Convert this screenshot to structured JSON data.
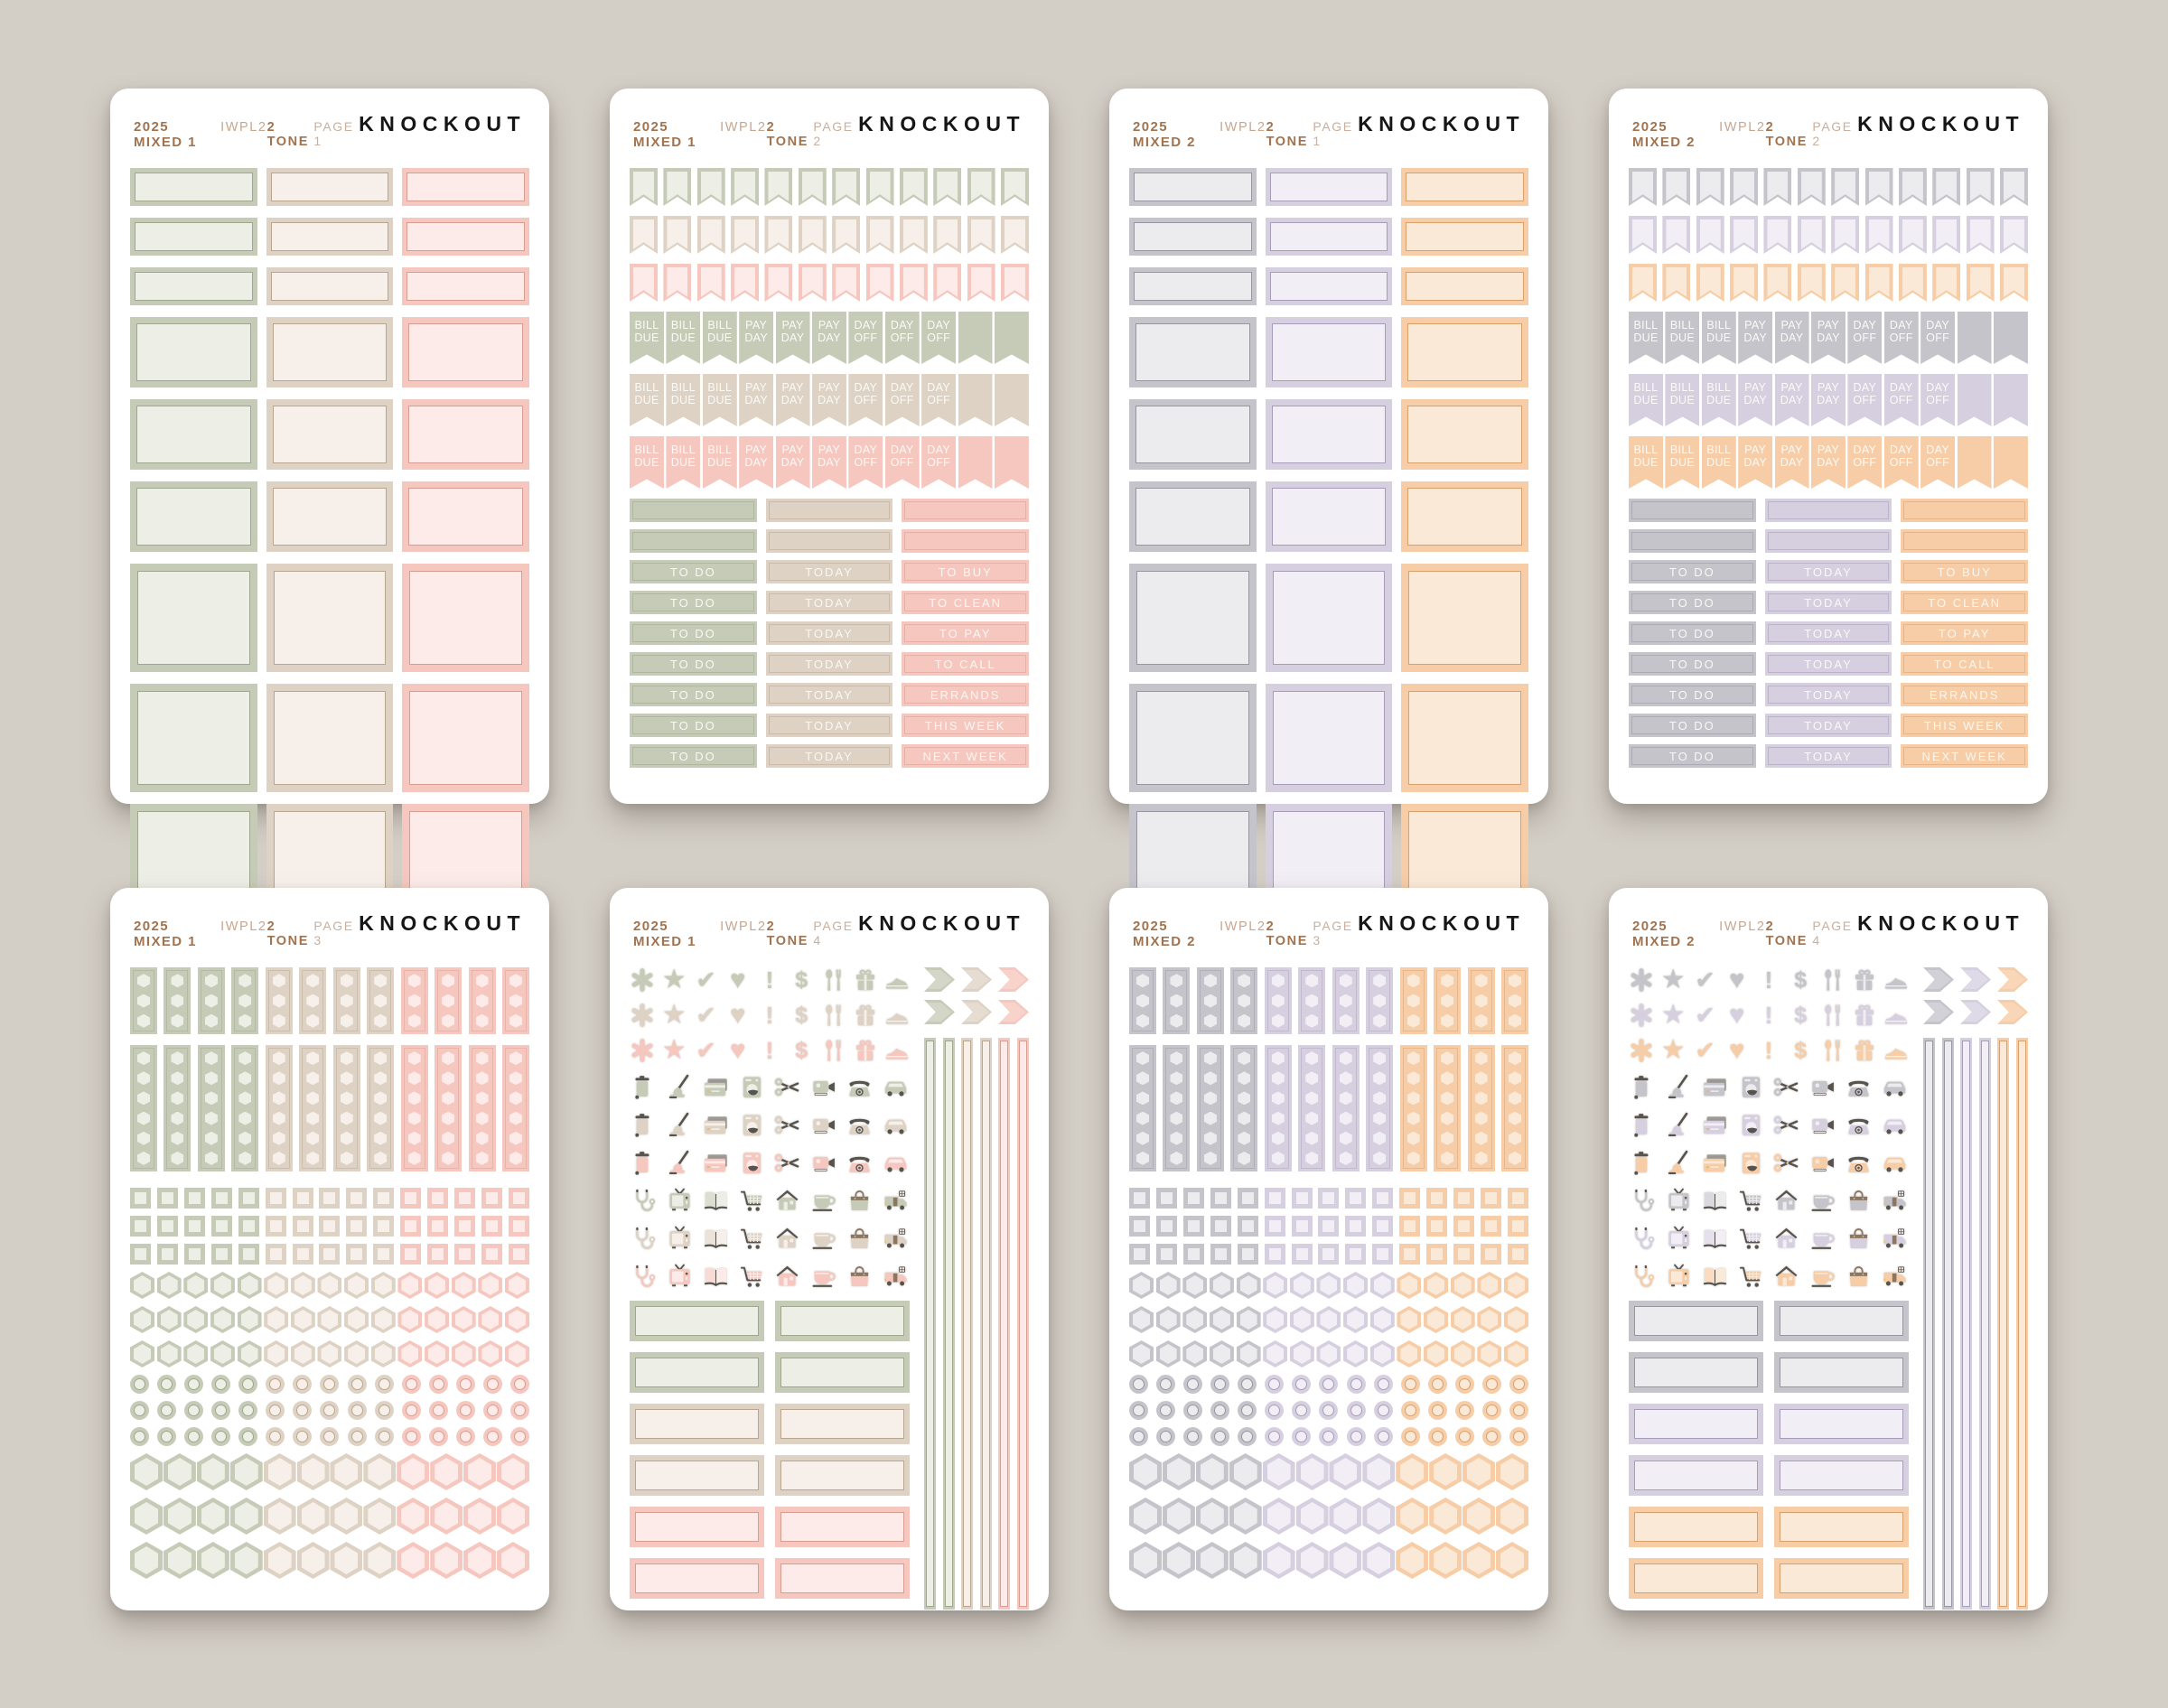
{
  "page": {
    "background": "#d3cec6"
  },
  "palettes": {
    "mixed1": [
      {
        "name": "sage",
        "solid": "#c6cbb7",
        "light": "#edefe7",
        "line": "#9fa78d"
      },
      {
        "name": "beige",
        "solid": "#ddd2c3",
        "light": "#f7f0ea",
        "line": "#b9a68f"
      },
      {
        "name": "pink",
        "solid": "#f5c7be",
        "light": "#fcebe8",
        "line": "#d89d92"
      }
    ],
    "mixed2": [
      {
        "name": "gray",
        "solid": "#c5c4cb",
        "light": "#ececef",
        "line": "#9897a1"
      },
      {
        "name": "lavender",
        "solid": "#d6cfdf",
        "light": "#f1eef5",
        "line": "#a89db8"
      },
      {
        "name": "peach",
        "solid": "#f6cda6",
        "light": "#fbe9d8",
        "line": "#d8a06b"
      }
    ]
  },
  "labels": {
    "flags": [
      "BILL DUE",
      "PAY DAY",
      "DAY OFF"
    ],
    "strips": [
      [
        "TO DO",
        "TODAY",
        "TO BUY"
      ],
      [
        "TO DO",
        "TODAY",
        "TO CLEAN"
      ],
      [
        "TO DO",
        "TODAY",
        "TO PAY"
      ],
      [
        "TO DO",
        "TODAY",
        "TO CALL"
      ],
      [
        "TO DO",
        "TODAY",
        "ERRANDS"
      ],
      [
        "TO DO",
        "TODAY",
        "THIS WEEK"
      ],
      [
        "TO DO",
        "TODAY",
        "NEXT WEEK"
      ]
    ]
  },
  "icons": {
    "symbols": [
      "asterisk",
      "star",
      "check",
      "heart",
      "exclamation",
      "dollar",
      "utensils",
      "gift",
      "sneaker"
    ],
    "objects_a": [
      "trash-bin",
      "vacuum",
      "credit-cards",
      "washing-machine",
      "scissors",
      "video-camera",
      "telephone",
      "car"
    ],
    "objects_b": [
      "stethoscope",
      "tv",
      "book",
      "shopping-cart",
      "house",
      "coffee-cup",
      "shopping-bag",
      "delivery-truck"
    ]
  },
  "icon_glyphs": {
    "star": "★",
    "check": "✔",
    "heart": "♥",
    "exclamation": "!",
    "dollar": "$"
  },
  "sheets": [
    {
      "collection": "2025 MIXED 1",
      "sku": "IWPL2",
      "tone": "2 TONE",
      "page": "PAGE 1",
      "brand": "KNOCKOUT",
      "layout": "boxes",
      "palette": "mixed1"
    },
    {
      "collection": "2025 MIXED 1",
      "sku": "IWPL2",
      "tone": "2 TONE",
      "page": "PAGE 2",
      "brand": "KNOCKOUT",
      "layout": "flags",
      "palette": "mixed1"
    },
    {
      "collection": "2025 MIXED 2",
      "sku": "IWPL2",
      "tone": "2 TONE",
      "page": "PAGE 1",
      "brand": "KNOCKOUT",
      "layout": "boxes",
      "palette": "mixed2"
    },
    {
      "collection": "2025 MIXED 2",
      "sku": "IWPL2",
      "tone": "2 TONE",
      "page": "PAGE 2",
      "brand": "KNOCKOUT",
      "layout": "flags",
      "palette": "mixed2"
    },
    {
      "collection": "2025 MIXED 1",
      "sku": "IWPL2",
      "tone": "2 TONE",
      "page": "PAGE 3",
      "brand": "KNOCKOUT",
      "layout": "shapes",
      "palette": "mixed1"
    },
    {
      "collection": "2025 MIXED 1",
      "sku": "IWPL2",
      "tone": "2 TONE",
      "page": "PAGE 4",
      "brand": "KNOCKOUT",
      "layout": "icons",
      "palette": "mixed1"
    },
    {
      "collection": "2025 MIXED 2",
      "sku": "IWPL2",
      "tone": "2 TONE",
      "page": "PAGE 3",
      "brand": "KNOCKOUT",
      "layout": "shapes",
      "palette": "mixed2"
    },
    {
      "collection": "2025 MIXED 2",
      "sku": "IWPL2",
      "tone": "2 TONE",
      "page": "PAGE 4",
      "brand": "KNOCKOUT",
      "layout": "icons",
      "palette": "mixed2"
    }
  ]
}
